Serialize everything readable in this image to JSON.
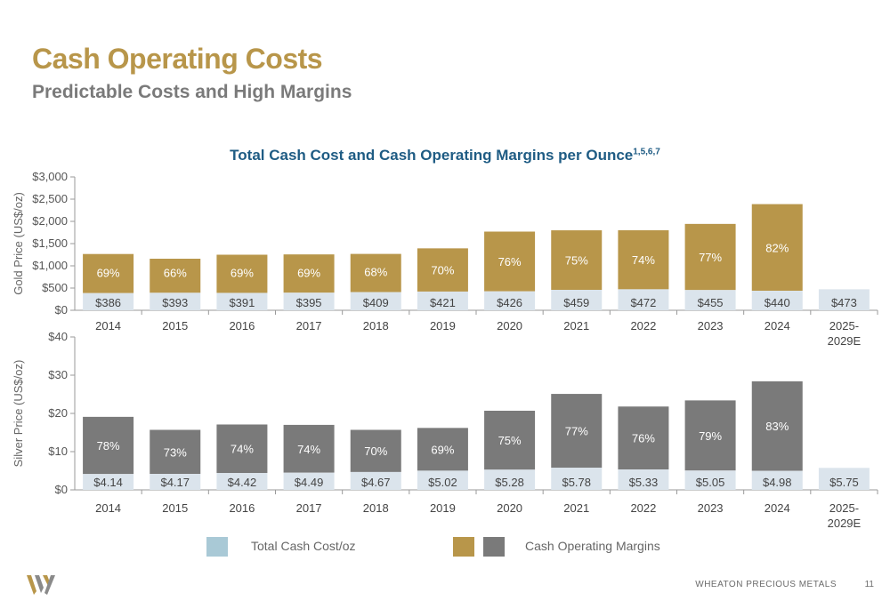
{
  "header": {
    "title": "Cash Operating Costs",
    "subtitle": "Predictable Costs and High Margins"
  },
  "chart_title": {
    "text": "Total Cash Cost and Cash Operating Margins per Ounce",
    "superscript": "1,5,6,7"
  },
  "colors": {
    "gold": "#b8964a",
    "silver_margin": "#7a7a7a",
    "cost": "#dbe4ec",
    "title_blue": "#1f5c84",
    "legend_cost": "#a9c9d6"
  },
  "chart_data": [
    {
      "type": "bar",
      "stacked": true,
      "ylabel": "Gold Price (US$/oz)",
      "ylim": [
        0,
        3000
      ],
      "yticks": [
        "$0",
        "$500",
        "$1,000",
        "$1,500",
        "$2,000",
        "$2,500",
        "$3,000"
      ],
      "categories": [
        "2014",
        "2015",
        "2016",
        "2017",
        "2018",
        "2019",
        "2020",
        "2021",
        "2022",
        "2023",
        "2024",
        "2025-2029E"
      ],
      "cost_values": [
        386,
        393,
        391,
        395,
        409,
        421,
        426,
        459,
        472,
        455,
        440,
        473
      ],
      "cost_labels": [
        "$386",
        "$393",
        "$391",
        "$395",
        "$409",
        "$421",
        "$426",
        "$459",
        "$472",
        "$455",
        "$440",
        "$473"
      ],
      "price_values": [
        1266,
        1160,
        1250,
        1257,
        1268,
        1393,
        1770,
        1799,
        1800,
        1943,
        2388,
        null
      ],
      "margin_labels": [
        "69%",
        "66%",
        "69%",
        "69%",
        "68%",
        "70%",
        "76%",
        "75%",
        "74%",
        "77%",
        "82%",
        ""
      ]
    },
    {
      "type": "bar",
      "stacked": true,
      "ylabel": "Silver Price (US$/oz)",
      "ylim": [
        0,
        40
      ],
      "yticks": [
        "$0",
        "$10",
        "$20",
        "$30",
        "$40"
      ],
      "categories": [
        "2014",
        "2015",
        "2016",
        "2017",
        "2018",
        "2019",
        "2020",
        "2021",
        "2022",
        "2023",
        "2024",
        "2025-2029E"
      ],
      "cost_values": [
        4.14,
        4.17,
        4.42,
        4.49,
        4.67,
        5.02,
        5.28,
        5.78,
        5.33,
        5.05,
        4.98,
        5.75
      ],
      "cost_labels": [
        "$4.14",
        "$4.17",
        "$4.42",
        "$4.49",
        "$4.67",
        "$5.02",
        "$5.28",
        "$5.78",
        "$5.33",
        "$5.05",
        "$4.98",
        "$5.75"
      ],
      "price_values": [
        19.1,
        15.7,
        17.1,
        17.0,
        15.7,
        16.2,
        20.7,
        25.1,
        21.8,
        23.4,
        28.4,
        null
      ],
      "margin_labels": [
        "78%",
        "73%",
        "74%",
        "74%",
        "70%",
        "69%",
        "75%",
        "77%",
        "76%",
        "79%",
        "83%",
        ""
      ]
    }
  ],
  "legend": {
    "cost_label": "Total Cash Cost/oz",
    "margin_label": "Cash Operating Margins"
  },
  "footer": {
    "brand": "WHEATON PRECIOUS METALS",
    "page": "11"
  }
}
